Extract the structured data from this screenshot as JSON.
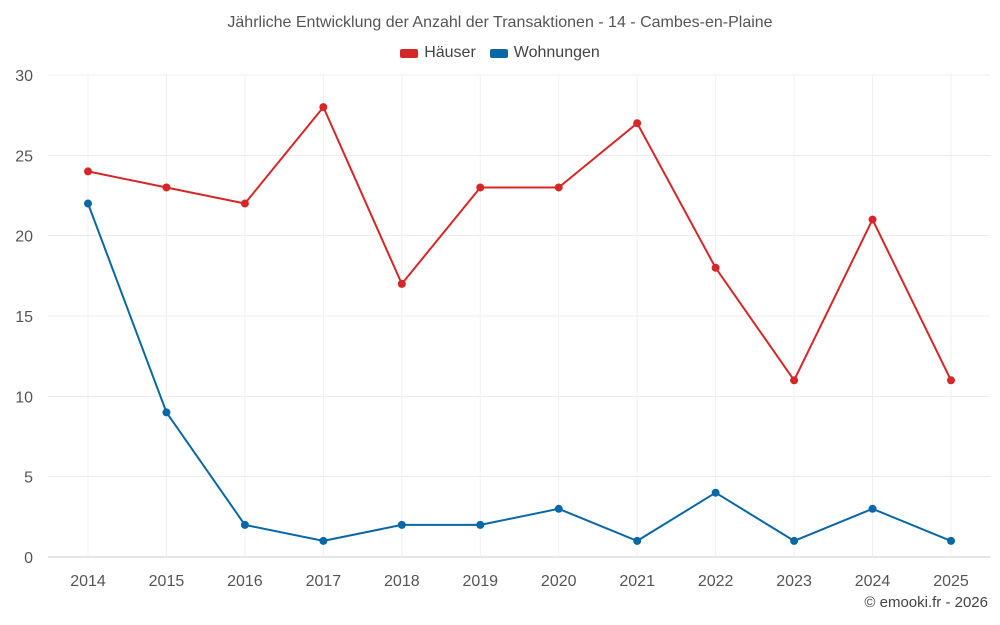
{
  "chart_data": {
    "type": "line",
    "title": "Jährliche Entwicklung der Anzahl der Transaktionen - 14 - Cambes-en-Plaine",
    "categories": [
      "2014",
      "2015",
      "2016",
      "2017",
      "2018",
      "2019",
      "2020",
      "2021",
      "2022",
      "2023",
      "2024",
      "2025"
    ],
    "series": [
      {
        "name": "Häuser",
        "color": "#d62728",
        "values": [
          24,
          23,
          22,
          28,
          17,
          23,
          23,
          27,
          18,
          11,
          21,
          11
        ]
      },
      {
        "name": "Wohnungen",
        "color": "#0868a6",
        "values": [
          22,
          9,
          2,
          1,
          2,
          2,
          3,
          1,
          4,
          1,
          3,
          1
        ]
      }
    ],
    "ylim": [
      0,
      30
    ],
    "yticks": [
      0,
      5,
      10,
      15,
      20,
      25,
      30
    ],
    "grid": true,
    "legend": "top-center",
    "xlabel": "",
    "ylabel": ""
  },
  "footer": {
    "credit": "© emooki.fr - 2026"
  }
}
